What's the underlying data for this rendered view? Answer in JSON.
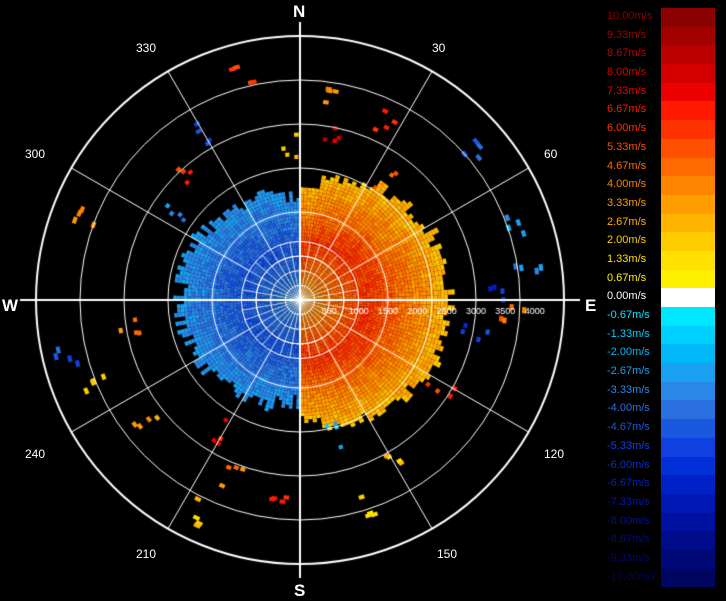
{
  "chart_data": {
    "type": "polar-radar",
    "title": "",
    "compass": {
      "north": "N",
      "south": "S",
      "east": "E",
      "west": "W"
    },
    "bearing_labels": [
      "30",
      "60",
      "120",
      "150",
      "210",
      "240",
      "300",
      "330"
    ],
    "range_tick_labels": [
      "500",
      "1000",
      "1500",
      "2000",
      "2500",
      "3000",
      "3500",
      "4000"
    ],
    "range_max": 4500,
    "rings": [
      750,
      1500,
      2250,
      3000,
      3750,
      4500
    ],
    "spokes_every_deg": 30,
    "inner_grid": {
      "rings": [
        250,
        500,
        750,
        1000
      ],
      "spoke_every_deg": 10
    },
    "sectors": [
      {
        "side": "east",
        "from_deg": 0,
        "to_deg": 180,
        "velocity_near": 6.0,
        "velocity_edge": 2.0
      },
      {
        "side": "west",
        "from_deg": 180,
        "to_deg": 360,
        "velocity_near": -4.67,
        "velocity_edge": -2.67
      }
    ],
    "colorbar": {
      "labels": [
        "10.00m/s",
        "9.33m/s",
        "8.67m/s",
        "8.00m/s",
        "7.33m/s",
        "6.67m/s",
        "6.00m/s",
        "5.33m/s",
        "4.67m/s",
        "4.00m/s",
        "3.33m/s",
        "2.67m/s",
        "2.00m/s",
        "1.33m/s",
        "0.67m/s",
        "0.00m/s",
        "-0.67m/s",
        "-1.33m/s",
        "-2.00m/s",
        "-2.67m/s",
        "-3.33m/s",
        "-4.00m/s",
        "-4.67m/s",
        "-5.33m/s",
        "-6.00m/s",
        "-6.67m/s",
        "-7.33m/s",
        "-8.00m/s",
        "-8.67m/s",
        "-9.33m/s",
        "-10.00m/s"
      ],
      "values": [
        10,
        9.33,
        8.67,
        8,
        7.33,
        6.67,
        6,
        5.33,
        4.67,
        4,
        3.33,
        2.67,
        2,
        1.33,
        0.67,
        0,
        -0.67,
        -1.33,
        -2,
        -2.67,
        -3.33,
        -4,
        -4.67,
        -5.33,
        -6,
        -6.67,
        -7.33,
        -8,
        -8.67,
        -9.33,
        -10
      ],
      "colors": [
        "#8b0000",
        "#a30000",
        "#bb0000",
        "#d40000",
        "#ec0000",
        "#ff1a00",
        "#ff3300",
        "#ff5000",
        "#ff6a00",
        "#ff8400",
        "#ff9c00",
        "#ffb400",
        "#ffcc00",
        "#ffe000",
        "#fff000",
        "#ffffff",
        "#00e8ff",
        "#00d0ff",
        "#00b8f8",
        "#1aa0f0",
        "#2a88e8",
        "#2a70e0",
        "#1a58e0",
        "#1040e0",
        "#0030d8",
        "#0020c8",
        "#0018b4",
        "#0010a0",
        "#000c8c",
        "#000878",
        "#000660"
      ]
    },
    "scatter_echoes": [
      {
        "bearing": 6,
        "range": 3600,
        "velocity": 3.3
      },
      {
        "bearing": 10,
        "range": 2900,
        "velocity": 8.0
      },
      {
        "bearing": 25,
        "range": 3300,
        "velocity": 6.7
      },
      {
        "bearing": 35,
        "range": 2500,
        "velocity": 4.7
      },
      {
        "bearing": 50,
        "range": 3900,
        "velocity": -4.0
      },
      {
        "bearing": 70,
        "range": 3700,
        "velocity": -2.7
      },
      {
        "bearing": 82,
        "range": 3900,
        "velocity": -3.3
      },
      {
        "bearing": 88,
        "range": 3300,
        "velocity": -6.0
      },
      {
        "bearing": 92,
        "range": 3600,
        "velocity": 4.7
      },
      {
        "bearing": 100,
        "range": 3000,
        "velocity": -5.3
      },
      {
        "bearing": 120,
        "range": 2800,
        "velocity": 6.0
      },
      {
        "bearing": 150,
        "range": 3000,
        "velocity": 2.0
      },
      {
        "bearing": 160,
        "range": 3700,
        "velocity": 1.3
      },
      {
        "bearing": 165,
        "range": 2400,
        "velocity": -2.0
      },
      {
        "bearing": 185,
        "range": 3400,
        "velocity": 6.0
      },
      {
        "bearing": 200,
        "range": 3200,
        "velocity": 4.0
      },
      {
        "bearing": 205,
        "range": 4000,
        "velocity": 2.0
      },
      {
        "bearing": 210,
        "range": 2600,
        "velocity": 6.7
      },
      {
        "bearing": 230,
        "range": 3300,
        "velocity": 3.3
      },
      {
        "bearing": 245,
        "range": 3700,
        "velocity": 2.7
      },
      {
        "bearing": 255,
        "range": 4000,
        "velocity": -4.7
      },
      {
        "bearing": 260,
        "range": 2900,
        "velocity": 4.0
      },
      {
        "bearing": 290,
        "range": 3800,
        "velocity": 4.0
      },
      {
        "bearing": 305,
        "range": 2600,
        "velocity": -3.3
      },
      {
        "bearing": 318,
        "range": 2900,
        "velocity": 6.0
      },
      {
        "bearing": 330,
        "range": 3300,
        "velocity": -5.3
      },
      {
        "bearing": 345,
        "range": 3900,
        "velocity": 5.3
      },
      {
        "bearing": 355,
        "range": 2600,
        "velocity": 2.7
      }
    ]
  }
}
